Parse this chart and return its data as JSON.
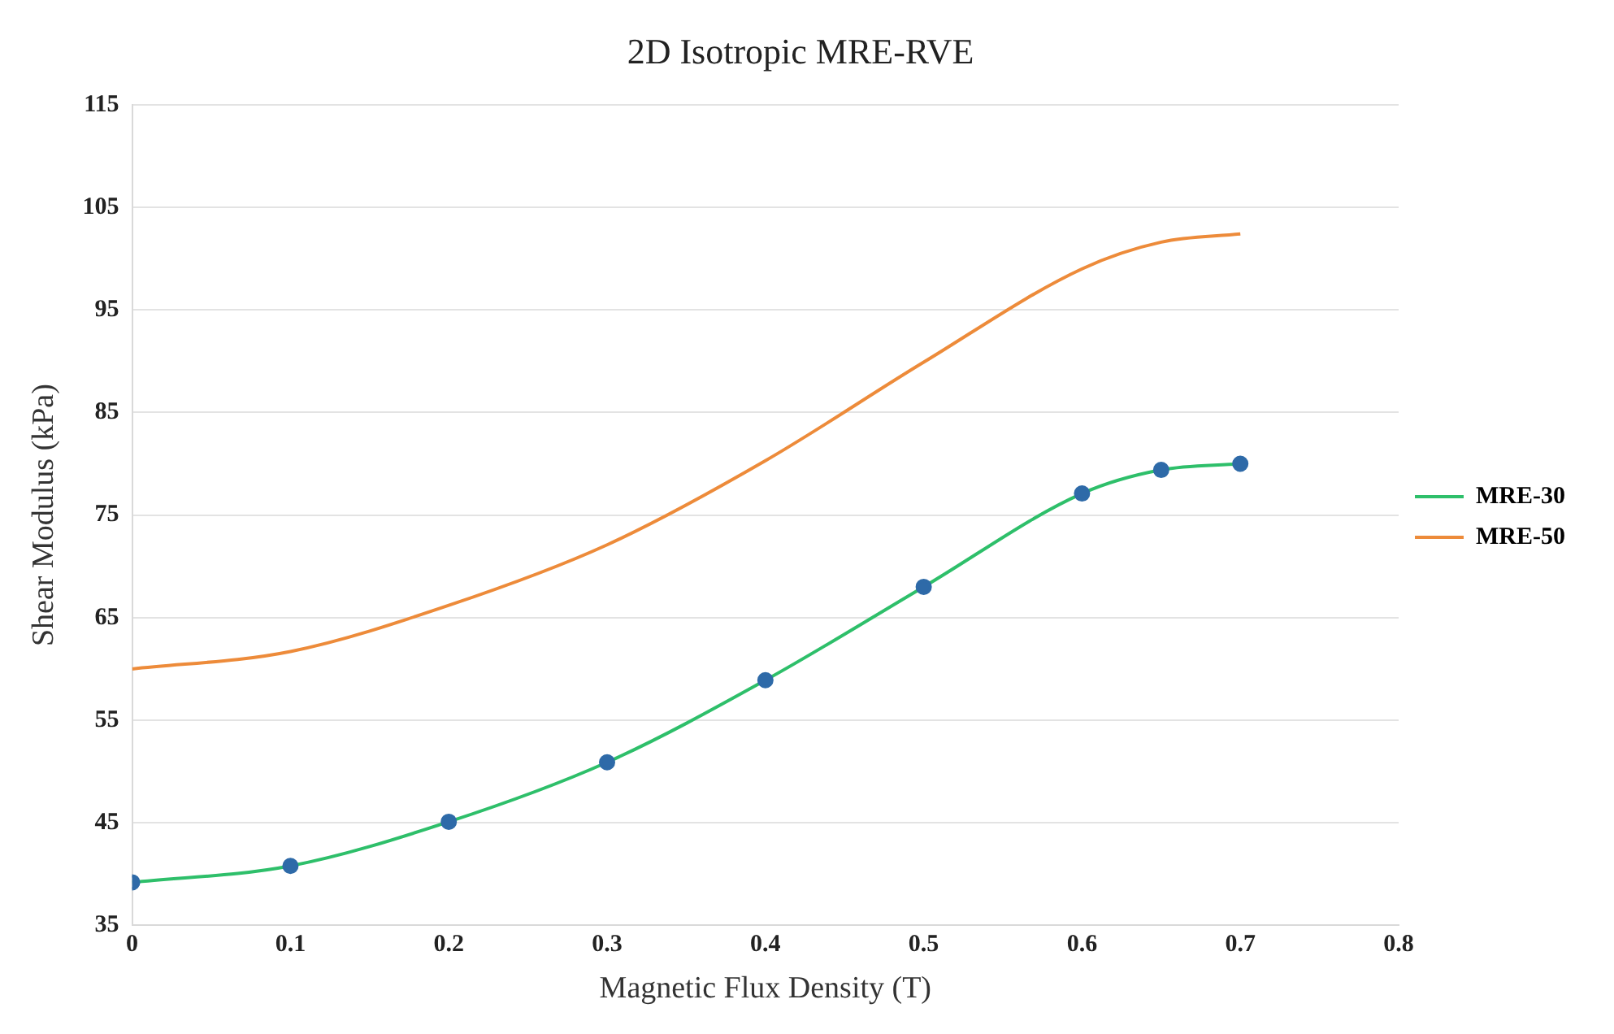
{
  "chart_data": {
    "type": "line",
    "title": "2D Isotropic MRE-RVE",
    "xlabel": "Magnetic Flux Density (T)",
    "ylabel": "Shear Modulus (kPa)",
    "x": [
      0,
      0.1,
      0.2,
      0.3,
      0.4,
      0.5,
      0.6,
      0.65,
      0.7
    ],
    "series": [
      {
        "name": "MRE-30",
        "color": "#2ebf6a",
        "marker": "circle",
        "values": [
          39.2,
          40.8,
          45.1,
          50.9,
          58.9,
          68.0,
          77.1,
          79.4,
          80.0
        ]
      },
      {
        "name": "MRE-50",
        "color": "#ed8b3a",
        "marker": "none",
        "values": [
          60.0,
          61.7,
          66.2,
          72.1,
          80.3,
          89.9,
          99.0,
          101.6,
          102.4
        ]
      }
    ],
    "xlim": [
      0,
      0.8
    ],
    "xticks": [
      0,
      0.1,
      0.2,
      0.3,
      0.4,
      0.5,
      0.6,
      0.7,
      0.8
    ],
    "ylim": [
      35,
      115
    ],
    "yticks": [
      35,
      45,
      55,
      65,
      75,
      85,
      95,
      105,
      115
    ],
    "grid": "y",
    "legend": "right"
  }
}
